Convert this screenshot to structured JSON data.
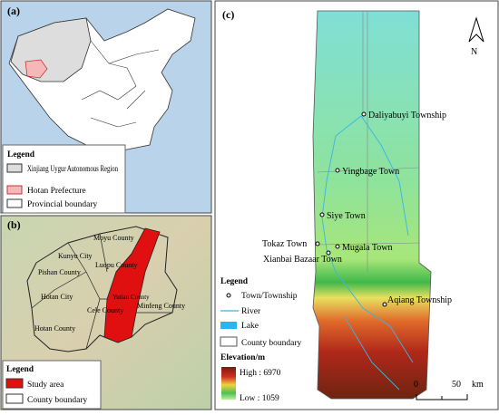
{
  "panel_a": {
    "label": "(a)",
    "legend": {
      "title": "Legend",
      "items": [
        "Xinjiang Uygur Autonomous Region",
        "Hotan Prefecture",
        "Provincial boundary"
      ]
    }
  },
  "panel_b": {
    "label": "(b)",
    "counties": [
      "Moyu County",
      "Kunyu City",
      "Luopu County",
      "Pishan County",
      "Hotan City",
      "Yutian County",
      "Cele County",
      "Minfeng County",
      "Hotan County"
    ],
    "legend": {
      "title": "Legend",
      "items": [
        "Study area",
        "County boundary"
      ]
    }
  },
  "panel_c": {
    "label": "(c)",
    "north": "N",
    "towns": [
      "Daliyabuyi Township",
      "Yingbage Town",
      "Siye Town",
      "Tokaz Town",
      "Mugala Town",
      "Xianbai Bazaar Town",
      "Aqiang Township"
    ],
    "legend": {
      "title": "Legend",
      "items": [
        "Town/Township",
        "River",
        "Lake",
        "County boundary"
      ],
      "elevation_title": "Elevation/m",
      "high": "High : 6970",
      "low": "Low : 1059"
    },
    "scale": {
      "ticks": [
        "0",
        "50"
      ],
      "unit": "km"
    }
  }
}
